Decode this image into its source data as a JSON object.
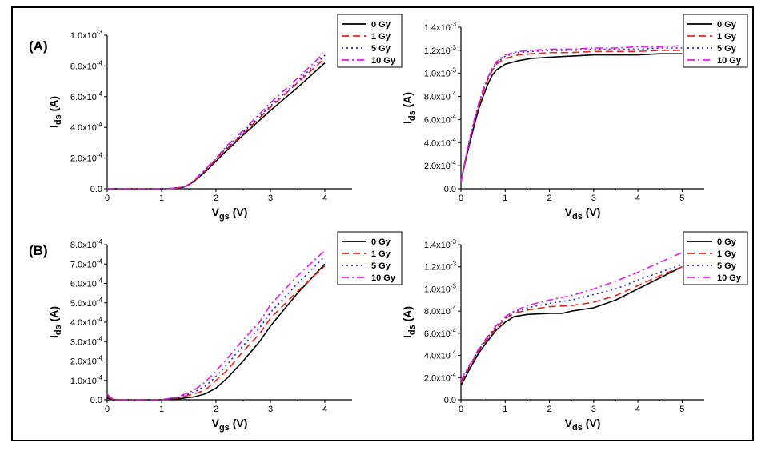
{
  "panel_labels": {
    "a": "(A)",
    "b": "(B)"
  },
  "colors": {
    "0 Gy": "#000000",
    "1 Gy": "#e8231d",
    "5 Gy": "#2323e6",
    "10 Gy": "#e11be3"
  },
  "chart_data": [
    {
      "id": "A-transfer",
      "type": "line",
      "xlabel": "V",
      "xlabel_sub": "gs",
      "xlabel_unit": "(V)",
      "ylabel": "I",
      "ylabel_sub": "ds",
      "ylabel_unit": "(A)",
      "xlim": [
        0,
        4.5
      ],
      "ylim": [
        0,
        0.001
      ],
      "x_ticks": [
        {
          "v": 0,
          "label": "0"
        },
        {
          "v": 1,
          "label": "1"
        },
        {
          "v": 2,
          "label": "2"
        },
        {
          "v": 3,
          "label": "3"
        },
        {
          "v": 4,
          "label": "4"
        }
      ],
      "y_ticks": [
        {
          "v": 0,
          "label": "0.0"
        },
        {
          "v": 0.0002,
          "label": "2.0x10",
          "exp": "-4"
        },
        {
          "v": 0.0004,
          "label": "4.0x10",
          "exp": "-4"
        },
        {
          "v": 0.0006,
          "label": "6.0x10",
          "exp": "-4"
        },
        {
          "v": 0.0008,
          "label": "8.0x10",
          "exp": "-4"
        },
        {
          "v": 0.001,
          "label": "1.0x10",
          "exp": "-3"
        }
      ],
      "legend": {
        "position": "top-right",
        "entries": [
          "0 Gy",
          "1 Gy",
          "5 Gy",
          "10 Gy"
        ]
      },
      "series": [
        {
          "name": "0 Gy",
          "x": [
            0,
            1.0,
            1.2,
            1.4,
            1.5,
            1.6,
            1.8,
            2.0,
            2.2,
            2.5,
            3.0,
            3.5,
            4.0
          ],
          "y": [
            0,
            0,
            2e-06,
            1e-05,
            2.5e-05,
            5e-05,
            0.00011,
            0.00018,
            0.00025,
            0.00035,
            0.00051,
            0.00066,
            0.00082
          ]
        },
        {
          "name": "1 Gy",
          "x": [
            0,
            1.0,
            1.2,
            1.4,
            1.5,
            1.6,
            1.8,
            2.0,
            2.2,
            2.5,
            3.0,
            3.5,
            4.0
          ],
          "y": [
            0,
            0,
            2e-06,
            1e-05,
            2.6e-05,
            5.2e-05,
            0.000115,
            0.00019,
            0.00026,
            0.00036,
            0.00053,
            0.00069,
            0.00085
          ]
        },
        {
          "name": "5 Gy",
          "x": [
            0,
            1.0,
            1.2,
            1.4,
            1.5,
            1.6,
            1.8,
            2.0,
            2.2,
            2.5,
            3.0,
            3.5,
            4.0
          ],
          "y": [
            0,
            0,
            2e-06,
            1.1e-05,
            2.7e-05,
            5.4e-05,
            0.00012,
            0.000195,
            0.00027,
            0.00037,
            0.00054,
            0.0007,
            0.00087
          ]
        },
        {
          "name": "10 Gy",
          "x": [
            0,
            1.0,
            1.2,
            1.4,
            1.5,
            1.6,
            1.8,
            2.0,
            2.2,
            2.5,
            3.0,
            3.5,
            4.0
          ],
          "y": [
            0,
            0,
            3e-06,
            1.2e-05,
            2.9e-05,
            5.7e-05,
            0.000125,
            0.0002,
            0.00028,
            0.00038,
            0.00056,
            0.00072,
            0.00089
          ]
        }
      ]
    },
    {
      "id": "A-output",
      "type": "line",
      "xlabel": "V",
      "xlabel_sub": "ds",
      "xlabel_unit": "(V)",
      "ylabel": "I",
      "ylabel_sub": "ds",
      "ylabel_unit": "(A)",
      "xlim": [
        0,
        5.5
      ],
      "ylim": [
        0,
        0.0014
      ],
      "x_ticks": [
        {
          "v": 0,
          "label": "0"
        },
        {
          "v": 1,
          "label": "1"
        },
        {
          "v": 2,
          "label": "2"
        },
        {
          "v": 3,
          "label": "3"
        },
        {
          "v": 4,
          "label": "4"
        },
        {
          "v": 5,
          "label": "5"
        }
      ],
      "y_ticks": [
        {
          "v": 0,
          "label": "0.0"
        },
        {
          "v": 0.0002,
          "label": "2.0x10",
          "exp": "-4"
        },
        {
          "v": 0.0004,
          "label": "4.0x10",
          "exp": "-4"
        },
        {
          "v": 0.0006,
          "label": "6.0x10",
          "exp": "-4"
        },
        {
          "v": 0.0008,
          "label": "8.0x10",
          "exp": "-4"
        },
        {
          "v": 0.001,
          "label": "1.0x10",
          "exp": "-3"
        },
        {
          "v": 0.0012,
          "label": "1.2x10",
          "exp": "-3"
        },
        {
          "v": 0.0014,
          "label": "1.4x10",
          "exp": "-3"
        }
      ],
      "legend": {
        "position": "top-right",
        "entries": [
          "0 Gy",
          "1 Gy",
          "5 Gy",
          "10 Gy"
        ]
      },
      "series": [
        {
          "name": "0 Gy",
          "x": [
            0,
            0.1,
            0.2,
            0.3,
            0.4,
            0.5,
            0.6,
            0.7,
            0.8,
            1.0,
            1.3,
            1.6,
            2.0,
            2.5,
            3.0,
            3.5,
            4.0,
            4.5,
            5.0
          ],
          "y": [
            6e-05,
            0.00024,
            0.0004,
            0.00055,
            0.00069,
            0.0008,
            0.0009,
            0.00098,
            0.00103,
            0.00108,
            0.00111,
            0.00113,
            0.00114,
            0.00115,
            0.00116,
            0.00116,
            0.00116,
            0.00117,
            0.00117
          ]
        },
        {
          "name": "1 Gy",
          "x": [
            0,
            0.1,
            0.2,
            0.3,
            0.4,
            0.5,
            0.6,
            0.7,
            0.8,
            1.0,
            1.3,
            1.6,
            2.0,
            2.5,
            3.0,
            3.5,
            4.0,
            4.5,
            5.0
          ],
          "y": [
            6e-05,
            0.00025,
            0.00042,
            0.00058,
            0.00072,
            0.00084,
            0.00094,
            0.00102,
            0.00108,
            0.00113,
            0.00116,
            0.00117,
            0.00118,
            0.00118,
            0.00119,
            0.00119,
            0.00119,
            0.0012,
            0.0012
          ]
        },
        {
          "name": "5 Gy",
          "x": [
            0,
            0.1,
            0.2,
            0.3,
            0.4,
            0.5,
            0.6,
            0.7,
            0.8,
            1.0,
            1.3,
            1.6,
            2.0,
            2.5,
            3.0,
            3.5,
            4.0,
            4.5,
            5.0
          ],
          "y": [
            6e-05,
            0.00025,
            0.00043,
            0.00059,
            0.00073,
            0.00085,
            0.00095,
            0.00103,
            0.00109,
            0.00115,
            0.00118,
            0.00119,
            0.0012,
            0.0012,
            0.00121,
            0.00121,
            0.00121,
            0.00122,
            0.00122
          ]
        },
        {
          "name": "10 Gy",
          "x": [
            0,
            0.1,
            0.2,
            0.3,
            0.4,
            0.5,
            0.6,
            0.7,
            0.8,
            1.0,
            1.3,
            1.6,
            2.0,
            2.5,
            3.0,
            3.5,
            4.0,
            4.5,
            5.0
          ],
          "y": [
            6e-05,
            0.00026,
            0.00044,
            0.0006,
            0.00074,
            0.00086,
            0.00096,
            0.00104,
            0.0011,
            0.00116,
            0.00119,
            0.0012,
            0.00121,
            0.00121,
            0.00122,
            0.00122,
            0.00123,
            0.00123,
            0.00124
          ]
        }
      ]
    },
    {
      "id": "B-transfer",
      "type": "line",
      "xlabel": "V",
      "xlabel_sub": "gs",
      "xlabel_unit": "(V)",
      "ylabel": "I",
      "ylabel_sub": "ds",
      "ylabel_unit": "(A)",
      "xlim": [
        0,
        4.5
      ],
      "ylim": [
        0,
        0.0008
      ],
      "x_ticks": [
        {
          "v": 0,
          "label": "0"
        },
        {
          "v": 1,
          "label": "1"
        },
        {
          "v": 2,
          "label": "2"
        },
        {
          "v": 3,
          "label": "3"
        },
        {
          "v": 4,
          "label": "4"
        }
      ],
      "y_ticks": [
        {
          "v": 0,
          "label": "0.0"
        },
        {
          "v": 0.0001,
          "label": "1.0x10",
          "exp": "-4"
        },
        {
          "v": 0.0002,
          "label": "2.0x10",
          "exp": "-4"
        },
        {
          "v": 0.0003,
          "label": "3.0x10",
          "exp": "-4"
        },
        {
          "v": 0.0004,
          "label": "4.0x10",
          "exp": "-4"
        },
        {
          "v": 0.0005,
          "label": "5.0x10",
          "exp": "-4"
        },
        {
          "v": 0.0006,
          "label": "6.0x10",
          "exp": "-4"
        },
        {
          "v": 0.0007,
          "label": "7.0x10",
          "exp": "-4"
        },
        {
          "v": 0.0008,
          "label": "8.0x10",
          "exp": "-4"
        }
      ],
      "legend": {
        "position": "top-right",
        "entries": [
          "0 Gy",
          "1 Gy",
          "5 Gy",
          "10 Gy"
        ]
      },
      "series": [
        {
          "name": "0 Gy",
          "x": [
            0,
            0.05,
            0.1,
            0.2,
            1.0,
            1.3,
            1.6,
            1.8,
            2.0,
            2.2,
            2.5,
            2.8,
            3.0,
            3.5,
            4.0
          ],
          "y": [
            1e-05,
            5e-06,
            0,
            0,
            0,
            5e-06,
            1.5e-05,
            3e-05,
            6e-05,
            0.00011,
            0.0002,
            0.0003,
            0.00038,
            0.00055,
            0.0007
          ]
        },
        {
          "name": "1 Gy",
          "x": [
            0,
            0.05,
            0.1,
            0.2,
            1.0,
            1.3,
            1.6,
            1.8,
            2.0,
            2.2,
            2.5,
            2.8,
            3.0,
            3.5,
            4.0
          ],
          "y": [
            2e-05,
            1e-05,
            3e-06,
            0,
            0,
            1e-05,
            3e-05,
            5e-05,
            0.0001,
            0.00015,
            0.00025,
            0.00034,
            0.00042,
            0.00056,
            0.00069
          ]
        },
        {
          "name": "5 Gy",
          "x": [
            0,
            0.05,
            0.1,
            0.2,
            1.0,
            1.3,
            1.6,
            1.8,
            2.0,
            2.2,
            2.5,
            2.8,
            3.0,
            3.5,
            4.0
          ],
          "y": [
            2e-05,
            1.2e-05,
            4e-06,
            0,
            0,
            1.2e-05,
            4e-05,
            7e-05,
            0.00012,
            0.00018,
            0.00028,
            0.00037,
            0.00045,
            0.0006,
            0.00074
          ]
        },
        {
          "name": "10 Gy",
          "x": [
            0,
            0.05,
            0.1,
            0.2,
            1.0,
            1.3,
            1.6,
            1.8,
            2.0,
            2.2,
            2.5,
            2.8,
            3.0,
            3.5,
            4.0
          ],
          "y": [
            3e-05,
            1.5e-05,
            5e-06,
            0,
            0,
            1.5e-05,
            5e-05,
            9e-05,
            0.00015,
            0.00021,
            0.00031,
            0.0004,
            0.00049,
            0.00064,
            0.00077
          ]
        }
      ]
    },
    {
      "id": "B-output",
      "type": "line",
      "xlabel": "V",
      "xlabel_sub": "ds",
      "xlabel_unit": "(V)",
      "ylabel": "I",
      "ylabel_sub": "ds",
      "ylabel_unit": "(A)",
      "xlim": [
        0,
        5.5
      ],
      "ylim": [
        0,
        0.0014
      ],
      "x_ticks": [
        {
          "v": 0,
          "label": "0"
        },
        {
          "v": 1,
          "label": "1"
        },
        {
          "v": 2,
          "label": "2"
        },
        {
          "v": 3,
          "label": "3"
        },
        {
          "v": 4,
          "label": "4"
        },
        {
          "v": 5,
          "label": "5"
        }
      ],
      "y_ticks": [
        {
          "v": 0,
          "label": "0.0"
        },
        {
          "v": 0.0002,
          "label": "2.0x10",
          "exp": "-4"
        },
        {
          "v": 0.0004,
          "label": "4.0x10",
          "exp": "-4"
        },
        {
          "v": 0.0006,
          "label": "6.0x10",
          "exp": "-4"
        },
        {
          "v": 0.0008,
          "label": "8.0x10",
          "exp": "-4"
        },
        {
          "v": 0.001,
          "label": "1.0x10",
          "exp": "-3"
        },
        {
          "v": 0.0012,
          "label": "1.2x10",
          "exp": "-3"
        },
        {
          "v": 0.0014,
          "label": "1.4x10",
          "exp": "-3"
        }
      ],
      "legend": {
        "position": "top-right",
        "entries": [
          "0 Gy",
          "1 Gy",
          "5 Gy",
          "10 Gy"
        ]
      },
      "series": [
        {
          "name": "0 Gy",
          "x": [
            0,
            0.2,
            0.4,
            0.6,
            0.8,
            1.0,
            1.2,
            1.5,
            2.0,
            2.3,
            2.5,
            3.0,
            3.5,
            4.0,
            4.5,
            5.0
          ],
          "y": [
            0.00013,
            0.00028,
            0.00042,
            0.00053,
            0.00063,
            0.0007,
            0.00075,
            0.00077,
            0.00078,
            0.00078,
            0.0008,
            0.00083,
            0.0009,
            0.001,
            0.0011,
            0.0012
          ]
        },
        {
          "name": "1 Gy",
          "x": [
            0,
            0.2,
            0.4,
            0.6,
            0.8,
            1.0,
            1.2,
            1.5,
            2.0,
            2.5,
            3.0,
            3.5,
            4.0,
            4.5,
            5.0
          ],
          "y": [
            0.00016,
            0.0003,
            0.00044,
            0.00055,
            0.00065,
            0.00073,
            0.00078,
            0.00081,
            0.00084,
            0.00085,
            0.00088,
            0.00094,
            0.00103,
            0.00112,
            0.0012
          ]
        },
        {
          "name": "5 Gy",
          "x": [
            0,
            0.2,
            0.4,
            0.6,
            0.8,
            1.0,
            1.2,
            1.5,
            2.0,
            2.5,
            3.0,
            3.5,
            4.0,
            4.5,
            5.0
          ],
          "y": [
            0.00017,
            0.00031,
            0.00045,
            0.00056,
            0.00066,
            0.00074,
            0.00079,
            0.00083,
            0.00087,
            0.0009,
            0.00095,
            0.001,
            0.00108,
            0.00115,
            0.00122
          ]
        },
        {
          "name": "10 Gy",
          "x": [
            0,
            0.2,
            0.4,
            0.6,
            0.8,
            1.0,
            1.2,
            1.5,
            2.0,
            2.5,
            3.0,
            3.5,
            4.0,
            4.5,
            5.0
          ],
          "y": [
            0.00018,
            0.00032,
            0.00046,
            0.00057,
            0.00067,
            0.00075,
            0.0008,
            0.00085,
            0.0009,
            0.00094,
            0.001,
            0.00107,
            0.00115,
            0.00124,
            0.00133
          ]
        }
      ]
    }
  ]
}
